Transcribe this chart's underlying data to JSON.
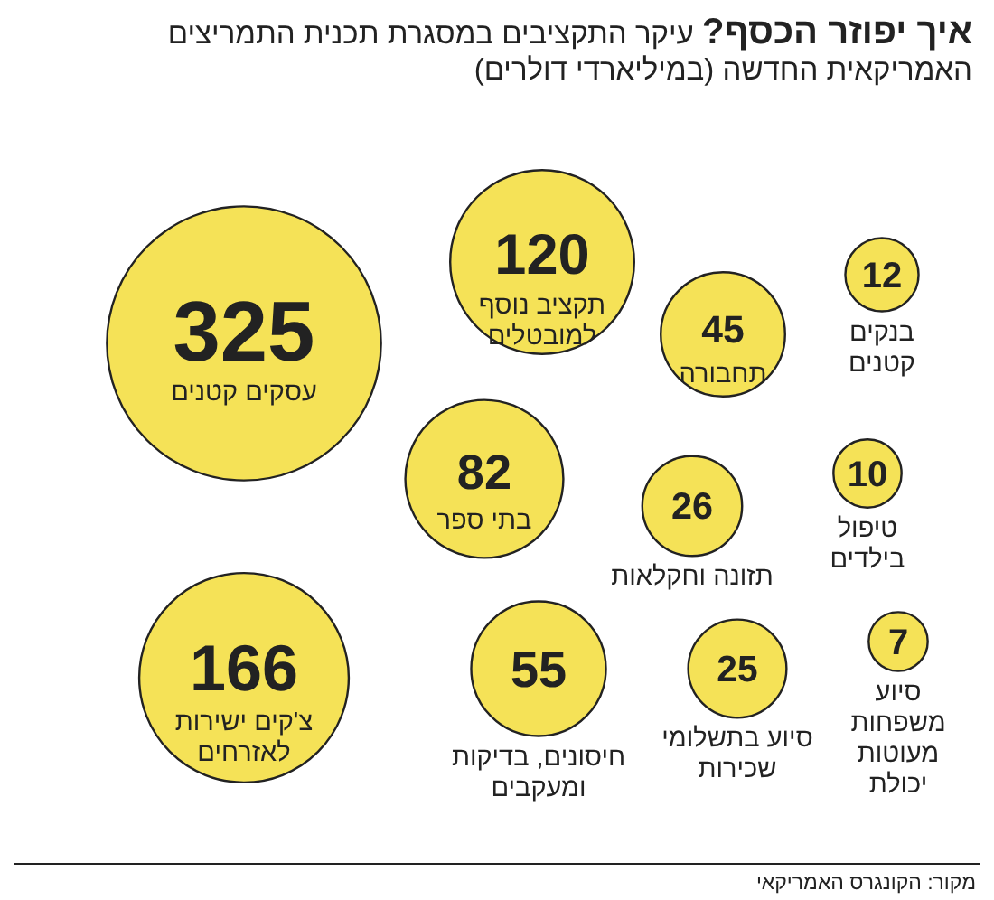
{
  "chart_data": {
    "type": "other",
    "title": "איך יפוזר הכסף?",
    "subtitle": "עיקר התקציבים במסגרת תכנית התמריצים האמריקאית החדשה (במיליארדי דולרים)",
    "categories": [
      "עסקים קטנים",
      "תקציב נוסף\nלמובטלים",
      "תחבורה",
      "בנקים\nקטנים",
      "בתי ספר",
      "תזונה וחקלאות",
      "טיפול\nבילדים",
      "צ'קים ישירות\nלאזרחים",
      "חיסונים, בדיקות\nומעקבים",
      "סיוע בתשלומי\nשכירות",
      "סיוע\nמשפחות\nמעוטות\nיכולת"
    ],
    "values": [
      325,
      120,
      45,
      12,
      82,
      26,
      10,
      166,
      55,
      25,
      7
    ],
    "color": "#f5e257",
    "data_labels": true,
    "annotations": [
      "מקור: הקונגרס האמריקאי"
    ]
  }
}
